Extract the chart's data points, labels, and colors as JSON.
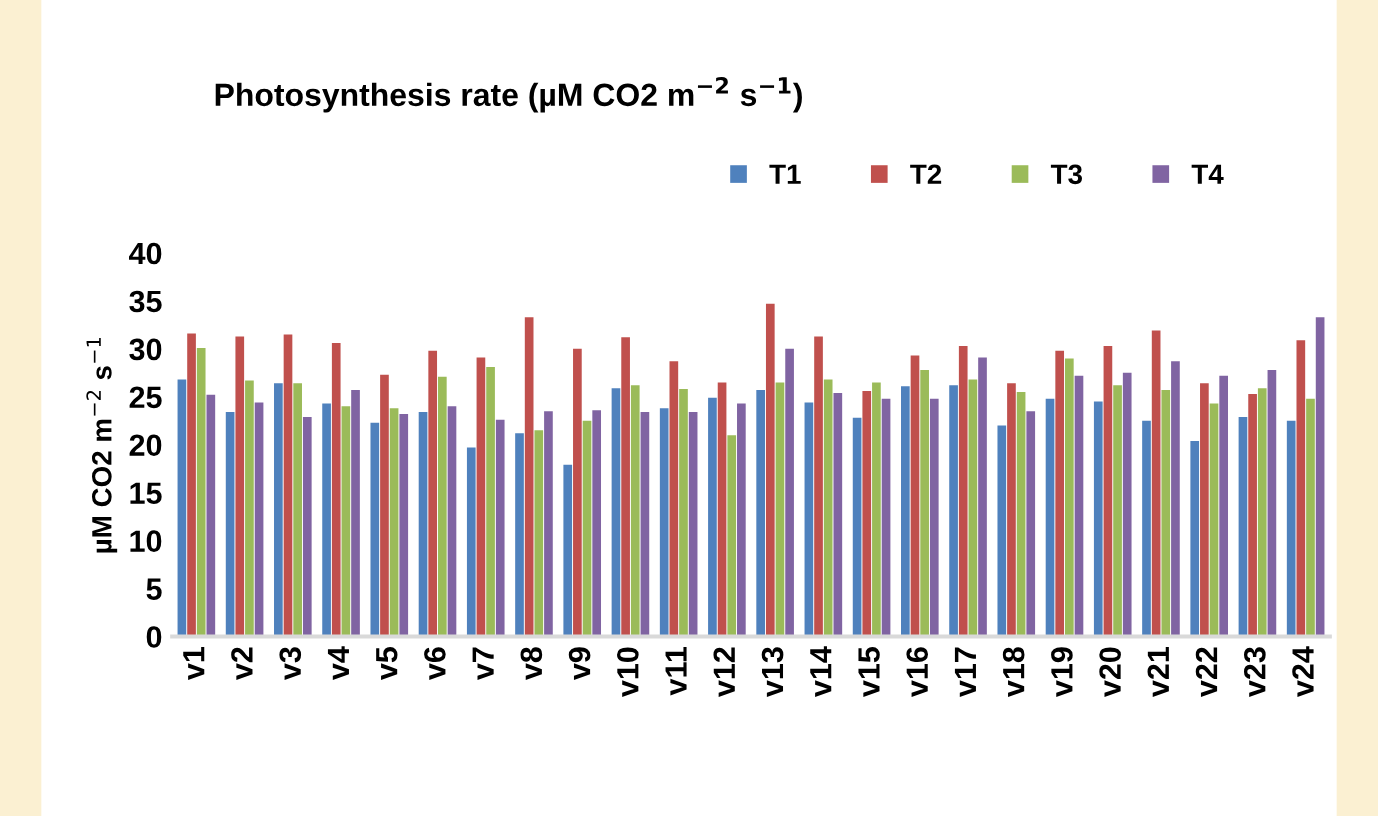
{
  "chart_data": {
    "type": "bar",
    "title": "Photosynthesis rate (µM CO2 m$^{−2}$ s$^{−1}$)",
    "ylabel": "µM CO2 m$^{−2}$ s$^{−1}$",
    "categories": [
      "v1",
      "v2",
      "v3",
      "v4",
      "v5",
      "v6",
      "v7",
      "v8",
      "v9",
      "v10",
      "v11",
      "v12",
      "v13",
      "v14",
      "v15",
      "v16",
      "v17",
      "v18",
      "v19",
      "v20",
      "v21",
      "v22",
      "v23",
      "v24"
    ],
    "series": [
      {
        "name": "T1",
        "color": "#4f81bd",
        "values": [
          26.8,
          23.4,
          26.4,
          24.3,
          22.3,
          23.4,
          19.7,
          21.2,
          17.9,
          25.9,
          23.8,
          24.9,
          25.7,
          24.4,
          22.8,
          26.1,
          26.2,
          22.0,
          24.8,
          24.5,
          22.5,
          20.4,
          22.9,
          22.5
        ]
      },
      {
        "name": "T2",
        "color": "#c0504d",
        "values": [
          31.6,
          31.3,
          31.5,
          30.6,
          27.3,
          29.8,
          29.1,
          33.3,
          30.0,
          31.2,
          28.7,
          26.5,
          34.7,
          31.3,
          25.6,
          29.3,
          30.3,
          26.4,
          29.8,
          30.3,
          31.9,
          26.4,
          25.3,
          30.9
        ]
      },
      {
        "name": "T3",
        "color": "#9bbb59",
        "values": [
          30.1,
          26.7,
          26.4,
          24.0,
          23.8,
          27.1,
          28.1,
          21.5,
          22.5,
          26.2,
          25.8,
          21.0,
          26.5,
          26.8,
          26.5,
          27.8,
          26.8,
          25.5,
          29.0,
          26.2,
          25.7,
          24.3,
          25.9,
          24.8
        ]
      },
      {
        "name": "T4",
        "color": "#8064a2",
        "values": [
          25.2,
          24.4,
          22.9,
          25.7,
          23.2,
          24.0,
          22.6,
          23.5,
          23.6,
          23.4,
          23.4,
          24.3,
          30.0,
          25.4,
          24.8,
          24.8,
          29.1,
          23.5,
          27.2,
          27.5,
          28.7,
          27.2,
          27.8,
          33.3
        ]
      }
    ],
    "ylim": [
      0,
      40
    ],
    "yticks": [
      0,
      5,
      10,
      15,
      20,
      25,
      30,
      35,
      40
    ],
    "grid": false,
    "legend": "top right"
  }
}
